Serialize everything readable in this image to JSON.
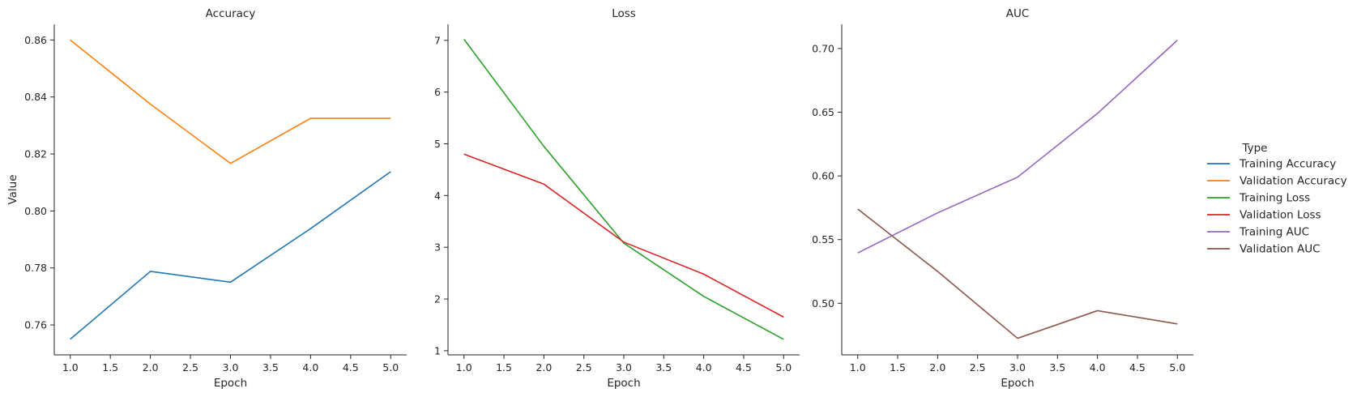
{
  "chart_data": [
    {
      "type": "line",
      "title": "Accuracy",
      "xlabel": "Epoch",
      "ylabel": "Value",
      "x": [
        1,
        2,
        3,
        4,
        5
      ],
      "xlim": [
        0.8,
        5.2
      ],
      "ylim": [
        0.7495,
        0.8655
      ],
      "xticks": [
        "1.0",
        "1.5",
        "2.0",
        "2.5",
        "3.0",
        "3.5",
        "4.0",
        "4.5",
        "5.0"
      ],
      "yticks": [
        "0.76",
        "0.78",
        "0.80",
        "0.82",
        "0.84",
        "0.86"
      ],
      "series": [
        {
          "name": "Training Accuracy",
          "color": "#1f77b4",
          "values": [
            0.755,
            0.7788,
            0.775,
            0.7938,
            0.8138
          ]
        },
        {
          "name": "Validation Accuracy",
          "color": "#ff7f0e",
          "values": [
            0.86,
            0.8375,
            0.8167,
            0.8325,
            0.8325
          ]
        }
      ]
    },
    {
      "type": "line",
      "title": "Loss",
      "xlabel": "Epoch",
      "ylabel": "",
      "x": [
        1,
        2,
        3,
        4,
        5
      ],
      "xlim": [
        0.8,
        5.2
      ],
      "ylim": [
        0.92,
        7.31
      ],
      "xticks": [
        "1.0",
        "1.5",
        "2.0",
        "2.5",
        "3.0",
        "3.5",
        "4.0",
        "4.5",
        "5.0"
      ],
      "yticks": [
        "1",
        "2",
        "3",
        "4",
        "5",
        "6",
        "7"
      ],
      "series": [
        {
          "name": "Training Loss",
          "color": "#2ca02c",
          "values": [
            7.02,
            4.95,
            3.08,
            2.05,
            1.22
          ]
        },
        {
          "name": "Validation Loss",
          "color": "#d62728",
          "values": [
            4.8,
            4.22,
            3.1,
            2.48,
            1.65
          ]
        }
      ]
    },
    {
      "type": "line",
      "title": "AUC",
      "xlabel": "Epoch",
      "ylabel": "",
      "x": [
        1,
        2,
        3,
        4,
        5
      ],
      "xlim": [
        0.8,
        5.2
      ],
      "ylim": [
        0.4595,
        0.719
      ],
      "xticks": [
        "1.0",
        "1.5",
        "2.0",
        "2.5",
        "3.0",
        "3.5",
        "4.0",
        "4.5",
        "5.0"
      ],
      "yticks": [
        "0.50",
        "0.55",
        "0.60",
        "0.65",
        "0.70"
      ],
      "series": [
        {
          "name": "Training AUC",
          "color": "#9467bd",
          "values": [
            0.5395,
            0.571,
            0.599,
            0.649,
            0.7065
          ]
        },
        {
          "name": "Validation AUC",
          "color": "#8c564b",
          "values": [
            0.574,
            0.525,
            0.4725,
            0.4942,
            0.4838
          ]
        }
      ]
    }
  ],
  "legend": {
    "title": "Type",
    "placement": "right",
    "entries": [
      {
        "label": "Training Accuracy",
        "color": "#1f77b4"
      },
      {
        "label": "Validation Accuracy",
        "color": "#ff7f0e"
      },
      {
        "label": "Training Loss",
        "color": "#2ca02c"
      },
      {
        "label": "Validation Loss",
        "color": "#d62728"
      },
      {
        "label": "Training AUC",
        "color": "#9467bd"
      },
      {
        "label": "Validation AUC",
        "color": "#8c564b"
      }
    ]
  }
}
